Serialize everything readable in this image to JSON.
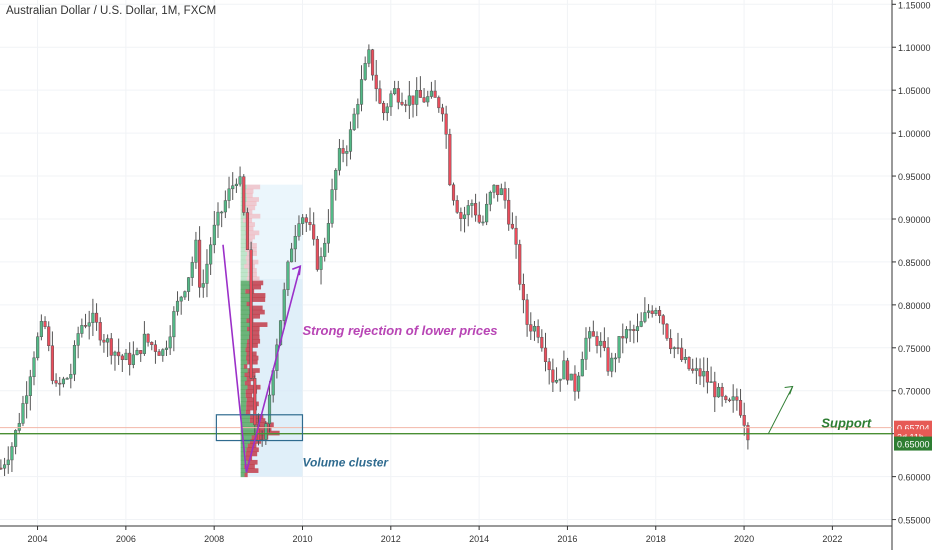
{
  "header": {
    "title": "Australian Dollar / U.S. Dollar, 1M, FXCM"
  },
  "chart_data": {
    "type": "candlestick",
    "title": "Australian Dollar / U.S. Dollar, 1M, FXCM",
    "ylim": [
      0.5425,
      1.155
    ],
    "xlim": [
      2003.15,
      2023.35
    ],
    "y_ticks": [
      "0.55000",
      "0.60000",
      "0.65000",
      "0.70000",
      "0.75000",
      "0.80000",
      "0.85000",
      "0.90000",
      "0.95000",
      "1.00000",
      "1.05000",
      "1.10000",
      "1.15000"
    ],
    "x_ticks": [
      "2004",
      "2006",
      "2008",
      "2010",
      "2012",
      "2014",
      "2016",
      "2018",
      "2020",
      "2022"
    ],
    "up_color": "#53b987",
    "down_color": "#eb4d5c",
    "price_path": [
      [
        2003.17,
        0.61
      ],
      [
        2003.45,
        0.64
      ],
      [
        2003.7,
        0.69
      ],
      [
        2003.95,
        0.752
      ],
      [
        2004.15,
        0.78
      ],
      [
        2004.4,
        0.7
      ],
      [
        2004.75,
        0.72
      ],
      [
        2004.95,
        0.775
      ],
      [
        2005.2,
        0.785
      ],
      [
        2005.6,
        0.755
      ],
      [
        2005.95,
        0.735
      ],
      [
        2006.25,
        0.74
      ],
      [
        2006.4,
        0.76
      ],
      [
        2006.85,
        0.745
      ],
      [
        2007.1,
        0.79
      ],
      [
        2007.45,
        0.84
      ],
      [
        2007.6,
        0.87
      ],
      [
        2007.7,
        0.81
      ],
      [
        2007.95,
        0.88
      ],
      [
        2008.25,
        0.92
      ],
      [
        2008.55,
        0.955
      ],
      [
        2008.75,
        0.87
      ],
      [
        2008.85,
        0.68
      ],
      [
        2008.95,
        0.655
      ],
      [
        2009.12,
        0.63
      ],
      [
        2009.3,
        0.72
      ],
      [
        2009.55,
        0.8
      ],
      [
        2009.75,
        0.87
      ],
      [
        2009.95,
        0.91
      ],
      [
        2010.15,
        0.89
      ],
      [
        2010.38,
        0.84
      ],
      [
        2010.55,
        0.89
      ],
      [
        2010.8,
        0.97
      ],
      [
        2011.05,
        0.99
      ],
      [
        2011.25,
        1.04
      ],
      [
        2011.5,
        1.09
      ],
      [
        2011.65,
        1.06
      ],
      [
        2011.8,
        1.02
      ],
      [
        2012.05,
        1.05
      ],
      [
        2012.35,
        1.04
      ],
      [
        2012.6,
        1.04
      ],
      [
        2012.95,
        1.04
      ],
      [
        2013.2,
        1.03
      ],
      [
        2013.35,
        0.94
      ],
      [
        2013.6,
        0.9
      ],
      [
        2013.85,
        0.92
      ],
      [
        2014.05,
        0.89
      ],
      [
        2014.3,
        0.935
      ],
      [
        2014.55,
        0.93
      ],
      [
        2014.8,
        0.875
      ],
      [
        2015.05,
        0.78
      ],
      [
        2015.35,
        0.77
      ],
      [
        2015.7,
        0.71
      ],
      [
        2015.95,
        0.73
      ],
      [
        2016.15,
        0.7
      ],
      [
        2016.4,
        0.76
      ],
      [
        2016.7,
        0.76
      ],
      [
        2016.95,
        0.725
      ],
      [
        2017.25,
        0.765
      ],
      [
        2017.6,
        0.77
      ],
      [
        2017.85,
        0.795
      ],
      [
        2018.05,
        0.8
      ],
      [
        2018.3,
        0.76
      ],
      [
        2018.6,
        0.735
      ],
      [
        2018.85,
        0.72
      ],
      [
        2019.05,
        0.72
      ],
      [
        2019.35,
        0.7
      ],
      [
        2019.6,
        0.68
      ],
      [
        2019.85,
        0.69
      ],
      [
        2020.05,
        0.66
      ],
      [
        2020.1,
        0.65
      ]
    ],
    "volume_profile": {
      "x_range": [
        2008.6,
        2010.0
      ],
      "y_range": [
        0.6,
        0.94
      ],
      "value_area": [
        0.6,
        0.83
      ]
    },
    "horizontal_levels": [
      {
        "price": 0.657,
        "color": "#f2b7a8"
      },
      {
        "price": 0.65,
        "color": "#4a8f34"
      }
    ],
    "price_labels": [
      {
        "text": "0.65704",
        "price": 0.657,
        "bg": "#e65a55"
      },
      {
        "text": "2d 11h",
        "price": 0.647,
        "bg": "#e65a55"
      },
      {
        "text": "0.65000",
        "price": 0.6385,
        "bg": "#2e7d32"
      }
    ],
    "annotations": [
      {
        "text": "Strong rejection of lower prices",
        "color": "#b845b5",
        "x": 2010.0,
        "y": 0.765
      },
      {
        "text": "Volume cluster",
        "color": "#2f6b8f",
        "x": 2010.0,
        "y": 0.612
      },
      {
        "text": "Support",
        "color": "#2e7d32",
        "x": 2021.75,
        "y": 0.657
      }
    ],
    "cluster_box": {
      "x0": 2008.05,
      "x1": 2010.0,
      "y0": 0.672,
      "y1": 0.642
    },
    "v_arrow": {
      "start": [
        2008.2,
        0.87
      ],
      "bottom": [
        2008.73,
        0.605
      ],
      "end": [
        2009.95,
        0.845
      ]
    },
    "support_arrow": {
      "start": [
        2020.55,
        0.65
      ],
      "end": [
        2021.1,
        0.705
      ]
    }
  }
}
